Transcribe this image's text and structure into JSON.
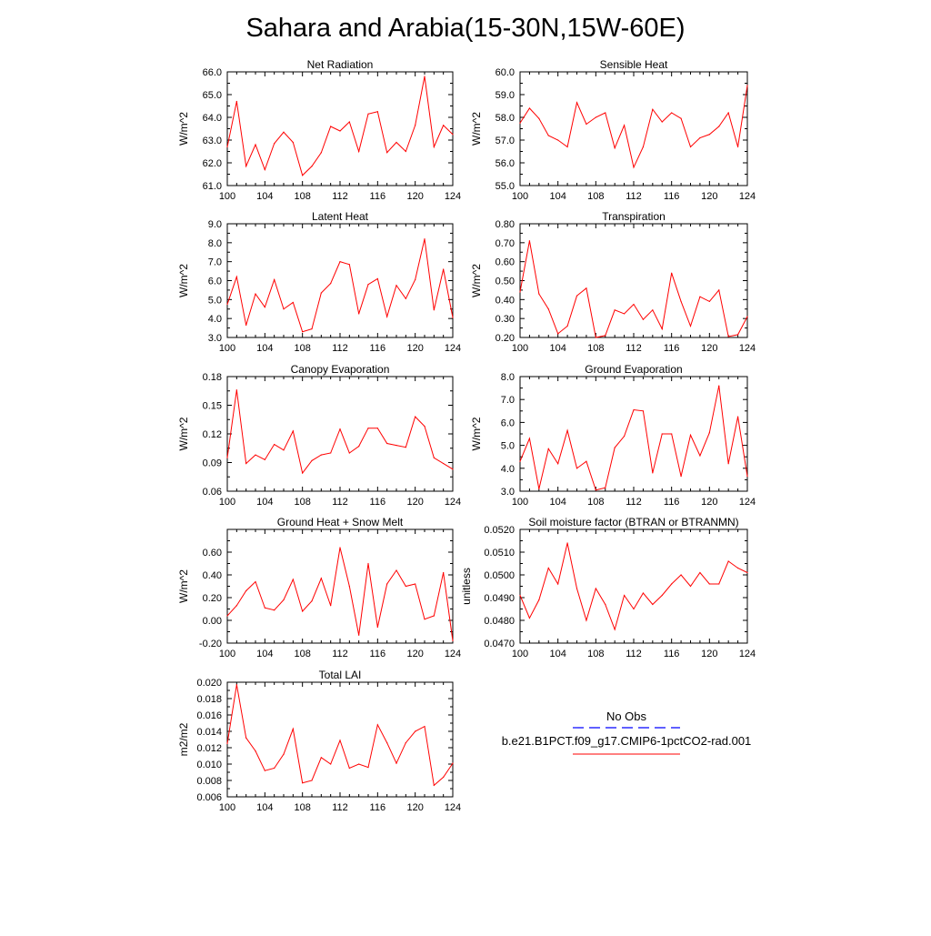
{
  "figure": {
    "title": "Sahara and Arabia(15-30N,15W-60E)",
    "series_color": "#ff0000",
    "obs_color": "#0000ff"
  },
  "legend": {
    "obs_label": "No Obs",
    "model_label": "b.e21.B1PCT.f09_g17.CMIP6-1pctCO2-rad.001"
  },
  "chart_data": [
    {
      "type": "line",
      "title": "Net Radiation",
      "ylabel": "W/m^2",
      "xlim": [
        100,
        124
      ],
      "xticks": [
        "100",
        "104",
        "108",
        "112",
        "116",
        "120",
        "124"
      ],
      "ylim": [
        61.0,
        66.0
      ],
      "yticks": [
        "61.0",
        "62.0",
        "63.0",
        "64.0",
        "65.0",
        "66.0"
      ],
      "x": [
        100,
        101,
        102,
        103,
        104,
        105,
        106,
        107,
        108,
        109,
        110,
        111,
        112,
        113,
        114,
        115,
        116,
        117,
        118,
        119,
        120,
        121,
        122,
        123,
        124
      ],
      "series": [
        {
          "values": [
            62.7,
            64.7,
            61.85,
            62.8,
            61.7,
            62.85,
            63.35,
            62.9,
            61.45,
            61.85,
            62.45,
            63.6,
            63.4,
            63.8,
            62.5,
            64.15,
            64.25,
            62.45,
            62.9,
            62.5,
            63.65,
            65.8,
            62.7,
            63.65,
            63.25
          ]
        }
      ]
    },
    {
      "type": "line",
      "title": "Sensible Heat",
      "ylabel": "W/m^2",
      "xlim": [
        100,
        124
      ],
      "xticks": [
        "100",
        "104",
        "108",
        "112",
        "116",
        "120",
        "124"
      ],
      "ylim": [
        55.0,
        60.0
      ],
      "yticks": [
        "55.0",
        "56.0",
        "57.0",
        "58.0",
        "59.0",
        "60.0"
      ],
      "x": [
        100,
        101,
        102,
        103,
        104,
        105,
        106,
        107,
        108,
        109,
        110,
        111,
        112,
        113,
        114,
        115,
        116,
        117,
        118,
        119,
        120,
        121,
        122,
        123,
        124
      ],
      "series": [
        {
          "values": [
            57.75,
            58.4,
            57.95,
            57.2,
            57.0,
            56.7,
            58.65,
            57.7,
            58.0,
            58.2,
            56.65,
            57.65,
            55.8,
            56.7,
            58.35,
            57.8,
            58.2,
            57.95,
            56.7,
            57.1,
            57.25,
            57.6,
            58.2,
            56.7,
            59.4
          ]
        }
      ]
    },
    {
      "type": "line",
      "title": "Latent Heat",
      "ylabel": "W/m^2",
      "xlim": [
        100,
        124
      ],
      "xticks": [
        "100",
        "104",
        "108",
        "112",
        "116",
        "120",
        "124"
      ],
      "ylim": [
        3.0,
        9.0
      ],
      "yticks": [
        "3.0",
        "4.0",
        "5.0",
        "6.0",
        "7.0",
        "8.0",
        "9.0"
      ],
      "x": [
        100,
        101,
        102,
        103,
        104,
        105,
        106,
        107,
        108,
        109,
        110,
        111,
        112,
        113,
        114,
        115,
        116,
        117,
        118,
        119,
        120,
        121,
        122,
        123,
        124
      ],
      "series": [
        {
          "values": [
            4.75,
            6.2,
            3.65,
            5.3,
            4.6,
            6.05,
            4.5,
            4.85,
            3.3,
            3.45,
            5.35,
            5.85,
            7.0,
            6.85,
            4.25,
            5.8,
            6.1,
            4.1,
            5.75,
            5.05,
            6.05,
            8.2,
            4.45,
            6.6,
            4.05
          ]
        }
      ]
    },
    {
      "type": "line",
      "title": "Transpiration",
      "ylabel": "W/m^2",
      "xlim": [
        100,
        124
      ],
      "xticks": [
        "100",
        "104",
        "108",
        "112",
        "116",
        "120",
        "124"
      ],
      "ylim": [
        0.2,
        0.8
      ],
      "yticks": [
        "0.20",
        "0.30",
        "0.40",
        "0.50",
        "0.60",
        "0.70",
        "0.80"
      ],
      "x": [
        100,
        101,
        102,
        103,
        104,
        105,
        106,
        107,
        108,
        109,
        110,
        111,
        112,
        113,
        114,
        115,
        116,
        117,
        118,
        119,
        120,
        121,
        122,
        123,
        124
      ],
      "series": [
        {
          "values": [
            0.44,
            0.71,
            0.43,
            0.35,
            0.22,
            0.26,
            0.42,
            0.46,
            0.2,
            0.21,
            0.345,
            0.325,
            0.375,
            0.295,
            0.345,
            0.245,
            0.54,
            0.39,
            0.26,
            0.415,
            0.39,
            0.45,
            0.205,
            0.215,
            0.31
          ]
        }
      ]
    },
    {
      "type": "line",
      "title": "Canopy Evaporation",
      "ylabel": "W/m^2",
      "xlim": [
        100,
        124
      ],
      "xticks": [
        "100",
        "104",
        "108",
        "112",
        "116",
        "120",
        "124"
      ],
      "ylim": [
        0.06,
        0.18
      ],
      "yticks": [
        "0.06",
        "0.09",
        "0.12",
        "0.15",
        "0.18"
      ],
      "x": [
        100,
        101,
        102,
        103,
        104,
        105,
        106,
        107,
        108,
        109,
        110,
        111,
        112,
        113,
        114,
        115,
        116,
        117,
        118,
        119,
        120,
        121,
        122,
        123,
        124
      ],
      "series": [
        {
          "values": [
            0.095,
            0.166,
            0.089,
            0.098,
            0.093,
            0.109,
            0.103,
            0.123,
            0.079,
            0.092,
            0.098,
            0.1,
            0.125,
            0.1,
            0.107,
            0.126,
            0.126,
            0.11,
            0.108,
            0.106,
            0.138,
            0.128,
            0.095,
            0.089,
            0.083
          ]
        }
      ]
    },
    {
      "type": "line",
      "title": "Ground Evaporation",
      "ylabel": "W/m^2",
      "xlim": [
        100,
        124
      ],
      "xticks": [
        "100",
        "104",
        "108",
        "112",
        "116",
        "120",
        "124"
      ],
      "ylim": [
        3.0,
        8.0
      ],
      "yticks": [
        "3.0",
        "4.0",
        "5.0",
        "6.0",
        "7.0",
        "8.0"
      ],
      "x": [
        100,
        101,
        102,
        103,
        104,
        105,
        106,
        107,
        108,
        109,
        110,
        111,
        112,
        113,
        114,
        115,
        116,
        117,
        118,
        119,
        120,
        121,
        122,
        123,
        124
      ],
      "series": [
        {
          "values": [
            4.3,
            5.3,
            3.1,
            4.85,
            4.2,
            5.65,
            4.0,
            4.3,
            3.05,
            3.15,
            4.9,
            5.4,
            6.55,
            6.5,
            3.8,
            5.5,
            5.5,
            3.65,
            5.45,
            4.55,
            5.55,
            7.6,
            4.2,
            6.25,
            3.65
          ]
        }
      ]
    },
    {
      "type": "line",
      "title": "Ground Heat + Snow Melt",
      "ylabel": "W/m^2",
      "xlim": [
        100,
        124
      ],
      "xticks": [
        "100",
        "104",
        "108",
        "112",
        "116",
        "120",
        "124"
      ],
      "ylim": [
        -0.2,
        0.8
      ],
      "yticks": [
        "-0.20",
        "0.00",
        "0.20",
        "0.40",
        "0.60"
      ],
      "x": [
        100,
        101,
        102,
        103,
        104,
        105,
        106,
        107,
        108,
        109,
        110,
        111,
        112,
        113,
        114,
        115,
        116,
        117,
        118,
        119,
        120,
        121,
        122,
        123,
        124
      ],
      "series": [
        {
          "values": [
            0.04,
            0.13,
            0.26,
            0.34,
            0.11,
            0.09,
            0.18,
            0.36,
            0.08,
            0.17,
            0.37,
            0.13,
            0.64,
            0.3,
            -0.13,
            0.5,
            -0.06,
            0.32,
            0.44,
            0.3,
            0.32,
            0.01,
            0.04,
            0.42,
            -0.18
          ]
        }
      ]
    },
    {
      "type": "line",
      "title": "Soil moisture factor (BTRAN or BTRANMN)",
      "ylabel": "unitless",
      "xlim": [
        100,
        124
      ],
      "xticks": [
        "100",
        "104",
        "108",
        "112",
        "116",
        "120",
        "124"
      ],
      "ylim": [
        0.047,
        0.052
      ],
      "yticks": [
        "0.0470",
        "0.0480",
        "0.0490",
        "0.0500",
        "0.0510",
        "0.0520"
      ],
      "x": [
        100,
        101,
        102,
        103,
        104,
        105,
        106,
        107,
        108,
        109,
        110,
        111,
        112,
        113,
        114,
        115,
        116,
        117,
        118,
        119,
        120,
        121,
        122,
        123,
        124
      ],
      "series": [
        {
          "values": [
            0.0491,
            0.0481,
            0.0489,
            0.0503,
            0.0496,
            0.0514,
            0.0494,
            0.048,
            0.0494,
            0.0487,
            0.0476,
            0.0491,
            0.0485,
            0.0492,
            0.0487,
            0.0491,
            0.0496,
            0.05,
            0.0495,
            0.0501,
            0.0496,
            0.0496,
            0.0506,
            0.0503,
            0.0501
          ]
        }
      ]
    },
    {
      "type": "line",
      "title": "Total LAI",
      "ylabel": "m2/m2",
      "xlim": [
        100,
        124
      ],
      "xticks": [
        "100",
        "104",
        "108",
        "112",
        "116",
        "120",
        "124"
      ],
      "ylim": [
        0.006,
        0.02
      ],
      "yticks": [
        "0.006",
        "0.008",
        "0.010",
        "0.012",
        "0.014",
        "0.016",
        "0.018",
        "0.020"
      ],
      "x": [
        100,
        101,
        102,
        103,
        104,
        105,
        106,
        107,
        108,
        109,
        110,
        111,
        112,
        113,
        114,
        115,
        116,
        117,
        118,
        119,
        120,
        121,
        122,
        123,
        124
      ],
      "series": [
        {
          "values": [
            0.0125,
            0.0197,
            0.0132,
            0.0116,
            0.0092,
            0.0095,
            0.0112,
            0.0143,
            0.0077,
            0.008,
            0.0108,
            0.01,
            0.0129,
            0.0095,
            0.01,
            0.0096,
            0.0148,
            0.0126,
            0.0101,
            0.0126,
            0.014,
            0.0146,
            0.0074,
            0.0084,
            0.0101
          ]
        }
      ]
    }
  ]
}
